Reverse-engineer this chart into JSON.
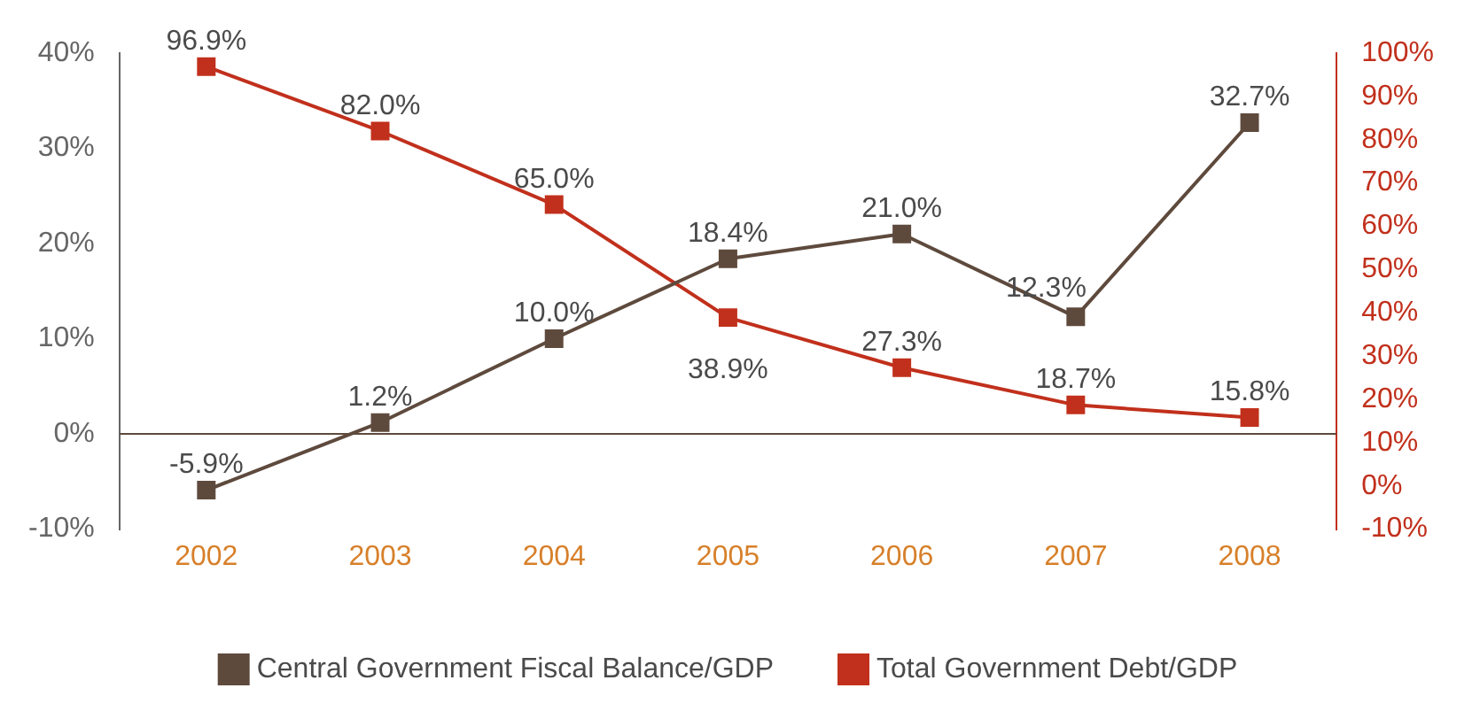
{
  "chart_data": {
    "type": "line",
    "categories": [
      "2002",
      "2003",
      "2004",
      "2005",
      "2006",
      "2007",
      "2008"
    ],
    "series": [
      {
        "name": "Central Government Fiscal Balance/GDP",
        "color": "#5e4a3d",
        "values": [
          -5.9,
          1.2,
          10.0,
          18.4,
          21.0,
          12.3,
          32.7
        ],
        "value_labels": [
          "-5.9%",
          "1.2%",
          "10.0%",
          "18.4%",
          "21.0%",
          "12.3%",
          "32.7%"
        ]
      },
      {
        "name": "Total Government Debt/GDP",
        "color": "#c1301c",
        "axis": "y2",
        "values": [
          96.9,
          82.0,
          65.0,
          38.9,
          27.3,
          18.7,
          15.8
        ],
        "value_labels": [
          "96.9%",
          "82.0%",
          "65.0%",
          "38.9%",
          "27.3%",
          "18.7%",
          "15.8%"
        ]
      }
    ],
    "ylim": [
      -10,
      40
    ],
    "yticks": [
      {
        "value": -10,
        "label": "-10%"
      },
      {
        "value": 0,
        "label": "0%"
      },
      {
        "value": 10,
        "label": "10%"
      },
      {
        "value": 20,
        "label": "20%"
      },
      {
        "value": 30,
        "label": "30%"
      },
      {
        "value": 40,
        "label": "40%"
      }
    ],
    "y2lim": [
      -10,
      100
    ],
    "y2ticks": [
      {
        "value": -10,
        "label": "-10%"
      },
      {
        "value": 0,
        "label": "0%"
      },
      {
        "value": 10,
        "label": "10%"
      },
      {
        "value": 20,
        "label": "20%"
      },
      {
        "value": 30,
        "label": "30%"
      },
      {
        "value": 40,
        "label": "40%"
      },
      {
        "value": 50,
        "label": "50%"
      },
      {
        "value": 60,
        "label": "60%"
      },
      {
        "value": 70,
        "label": "70%"
      },
      {
        "value": 80,
        "label": "80%"
      },
      {
        "value": 90,
        "label": "90%"
      },
      {
        "value": 100,
        "label": "100%"
      }
    ],
    "ref_lines": [
      {
        "axis": "y",
        "value": 0,
        "color": "#5e4a3d"
      }
    ],
    "marker": "square",
    "line_style": "solid",
    "legend": "bottom",
    "grid": false
  }
}
